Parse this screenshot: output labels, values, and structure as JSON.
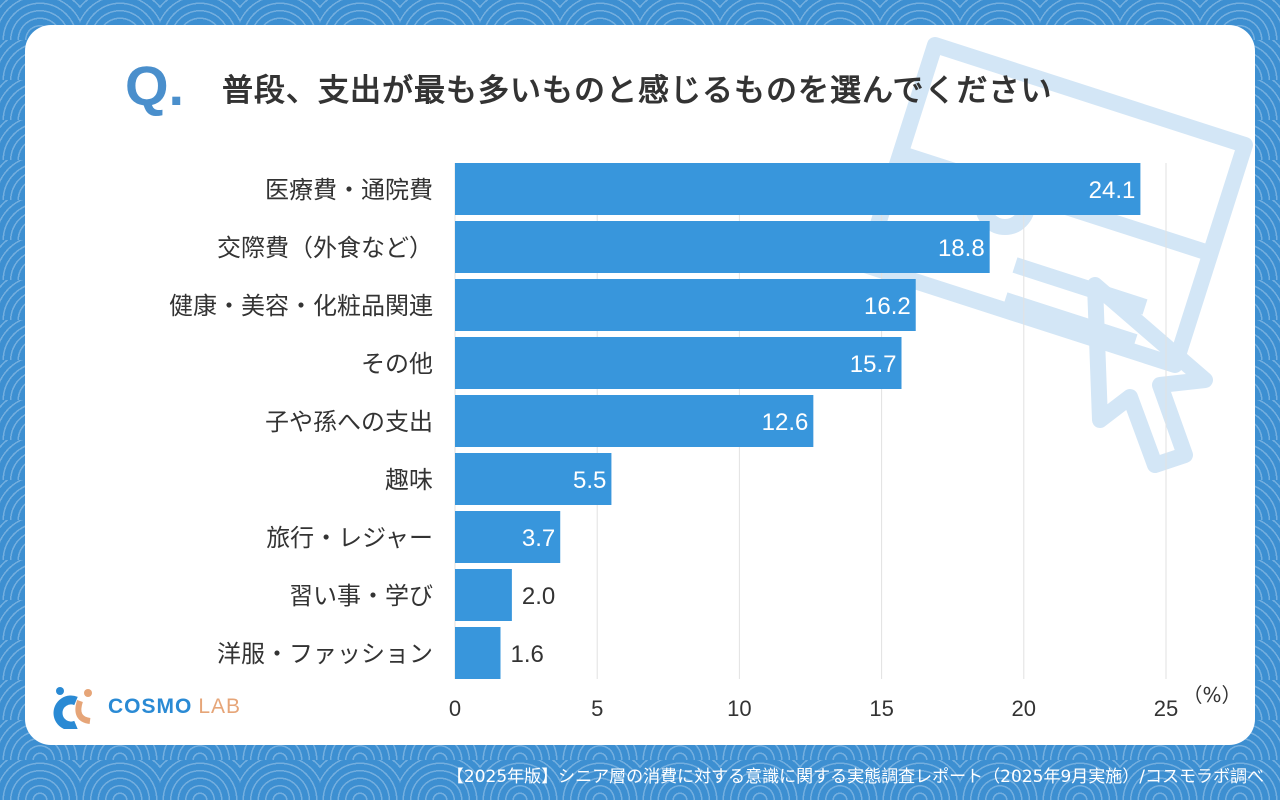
{
  "title_prefix": "Q.",
  "footer": "【2025年版】シニア層の消費に対する意識に関する実態調査レポート（2025年9月実施）/コスモラボ調べ",
  "logo": {
    "text1": "COSMO",
    "text2": "LAB"
  },
  "colors": {
    "bar": "#3896dc",
    "background": "#3d8fd1",
    "accent": "#4a8fcc"
  },
  "chart_data": {
    "type": "bar",
    "orientation": "horizontal",
    "title": "普段、支出が最も多いものと感じるものを選んでください",
    "categories": [
      "医療費・通院費",
      "交際費（外食など）",
      "健康・美容・化粧品関連",
      "その他",
      "子や孫への支出",
      "趣味",
      "旅行・レジャー",
      "習い事・学び",
      "洋服・ファッション"
    ],
    "values": [
      24.1,
      18.8,
      16.2,
      15.7,
      12.6,
      5.5,
      3.7,
      2.0,
      1.6
    ],
    "value_labels": [
      "24.1",
      "18.8",
      "16.2",
      "15.7",
      "12.6",
      "5.5",
      "3.7",
      "2.0",
      "1.6"
    ],
    "xlim": [
      0,
      25
    ],
    "xticks": [
      "0",
      "5",
      "10",
      "15",
      "20",
      "25"
    ],
    "xunit": "（%）",
    "grid": true
  }
}
